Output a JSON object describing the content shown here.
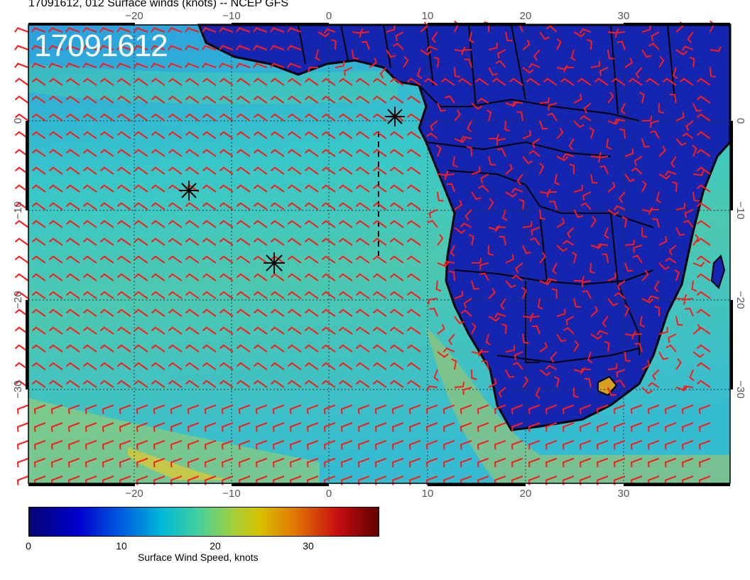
{
  "header": {
    "title": "17091612, 012 Surface winds (knots) -- NCEP GFS"
  },
  "map": {
    "datetime_stamp": "17091612",
    "lon_labels": [
      "−20",
      "−10",
      "0",
      "10",
      "20",
      "30"
    ],
    "lat_labels": [
      "0",
      "−10",
      "−20",
      "−30"
    ],
    "colors": {
      "ocean": "#2fb7d4",
      "land": "#1426b0",
      "barb": "#ff1a1a",
      "border": "#000000"
    },
    "markers": [
      "asterisk-marker",
      "asterisk-marker",
      "asterisk-marker"
    ]
  },
  "colorbar": {
    "ticks": [
      "0",
      "10",
      "20",
      "30"
    ],
    "label": "Surface Wind Speed, knots"
  }
}
